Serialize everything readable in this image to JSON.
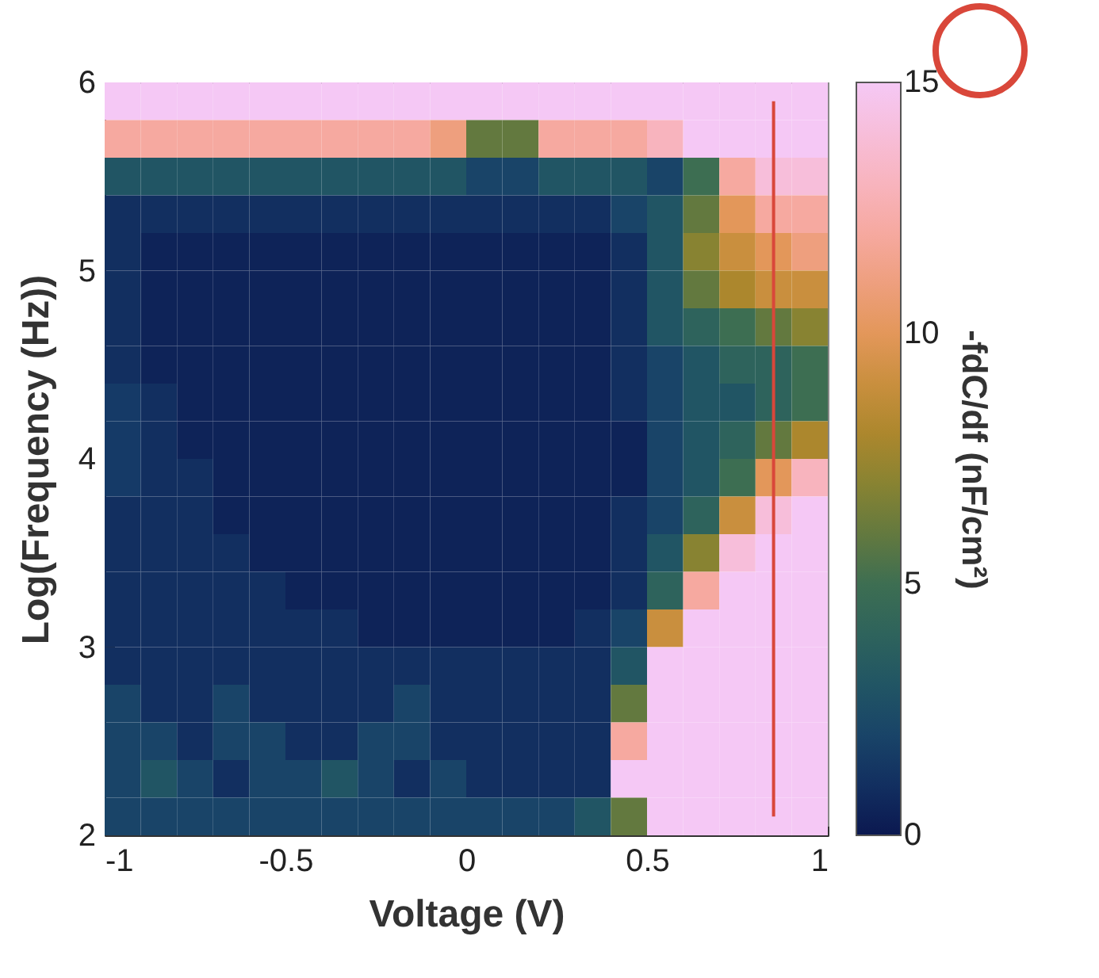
{
  "chart_data": {
    "type": "heatmap",
    "xlabel": "Voltage (V)",
    "ylabel": "Log(Frequency (Hz))",
    "clabel": "-fdC/df (nF/cm²)",
    "xlim": [
      -1,
      1
    ],
    "xticks": [
      -1,
      -0.5,
      0,
      0.5,
      1
    ],
    "ylim": [
      2,
      6
    ],
    "yticks": [
      2,
      3,
      4,
      5,
      6
    ],
    "clim": [
      0,
      15
    ],
    "cticks": [
      0,
      5,
      10,
      15
    ],
    "cells": [
      [
        15,
        15,
        15,
        15,
        15,
        15,
        15,
        15,
        15,
        15,
        15,
        15,
        15,
        15,
        15,
        15,
        15,
        15,
        15,
        15
      ],
      [
        12,
        12,
        12,
        12,
        12,
        12,
        12,
        12,
        12,
        11,
        6,
        6,
        12,
        12,
        12,
        13,
        15,
        15,
        15,
        15
      ],
      [
        3,
        3,
        3,
        3,
        3,
        3,
        3,
        3,
        3,
        3,
        2,
        2,
        3,
        3,
        3,
        2,
        5,
        12,
        14,
        14
      ],
      [
        1,
        1,
        1,
        1,
        1,
        1,
        1,
        1,
        1,
        1,
        1,
        1,
        1,
        1,
        2,
        3,
        6,
        10,
        12,
        12
      ],
      [
        1,
        0.5,
        0.5,
        0.5,
        0.5,
        0.5,
        0.5,
        0.5,
        0.5,
        0.5,
        0.5,
        0.5,
        0.5,
        0.5,
        1,
        3,
        7,
        9,
        10,
        11
      ],
      [
        1,
        0.5,
        0.5,
        0.5,
        0.5,
        0.5,
        0.5,
        0.5,
        0.5,
        0.5,
        0.5,
        0.5,
        0.5,
        0.5,
        1,
        3,
        6,
        8,
        9,
        9
      ],
      [
        1,
        0.5,
        0.5,
        0.5,
        0.5,
        0.5,
        0.5,
        0.5,
        0.5,
        0.5,
        0.5,
        0.5,
        0.5,
        0.5,
        1,
        3,
        4,
        5,
        6,
        7
      ],
      [
        1,
        0.5,
        0.5,
        0.5,
        0.5,
        0.5,
        0.5,
        0.5,
        0.5,
        0.5,
        0.5,
        0.5,
        0.5,
        0.5,
        1,
        2,
        3,
        4,
        4,
        5
      ],
      [
        1.5,
        1,
        0.5,
        0.5,
        0.5,
        0.5,
        0.5,
        0.5,
        0.5,
        0.5,
        0.5,
        0.5,
        0.5,
        0.5,
        1,
        2,
        3,
        3,
        4,
        5
      ],
      [
        1.5,
        1,
        0.5,
        0.5,
        0.5,
        0.5,
        0.5,
        0.5,
        0.5,
        0.5,
        0.5,
        0.5,
        0.5,
        0.5,
        0.5,
        2,
        3,
        4,
        6,
        8
      ],
      [
        1.5,
        1,
        1,
        0.5,
        0.5,
        0.5,
        0.5,
        0.5,
        0.5,
        0.5,
        0.5,
        0.5,
        0.5,
        0.5,
        0.5,
        2,
        3,
        5,
        10,
        13
      ],
      [
        1,
        1,
        1,
        0.5,
        0.5,
        0.5,
        0.5,
        0.5,
        0.5,
        0.5,
        0.5,
        0.5,
        0.5,
        0.5,
        1,
        2,
        4,
        9,
        14,
        15
      ],
      [
        1,
        1,
        1,
        1,
        0.5,
        0.5,
        0.5,
        0.5,
        0.5,
        0.5,
        0.5,
        0.5,
        0.5,
        0.5,
        1,
        3,
        7,
        14,
        15,
        15
      ],
      [
        1,
        1,
        1,
        1,
        1,
        0.5,
        0.5,
        0.5,
        0.5,
        0.5,
        0.5,
        0.5,
        0.5,
        0.5,
        1,
        4,
        12,
        15,
        15,
        15
      ],
      [
        1,
        1,
        1,
        1,
        1,
        1,
        1,
        0.5,
        0.5,
        0.5,
        0.5,
        0.5,
        0.5,
        1,
        2,
        9,
        15,
        15,
        15,
        15
      ],
      [
        1,
        1,
        1,
        1,
        1,
        1,
        1,
        1,
        1,
        1,
        1,
        1,
        1,
        1,
        3,
        15,
        15,
        15,
        15,
        15
      ],
      [
        2,
        1,
        1,
        2,
        1,
        1,
        1,
        1,
        2,
        1,
        1,
        1,
        1,
        1,
        6,
        15,
        15,
        15,
        15,
        15
      ],
      [
        2,
        2,
        1,
        2,
        2,
        1,
        1,
        2,
        2,
        1,
        1,
        1,
        1,
        1,
        12,
        15,
        15,
        15,
        15,
        15
      ],
      [
        2,
        3,
        2,
        1,
        2,
        2,
        3,
        2,
        1,
        2,
        1,
        1,
        1,
        1,
        15,
        15,
        15,
        15,
        15,
        15
      ],
      [
        2,
        2,
        2,
        2,
        2,
        2,
        2,
        2,
        2,
        2,
        2,
        2,
        2,
        3,
        6,
        15,
        15,
        15,
        15,
        15
      ]
    ],
    "ref_lines": [
      {
        "axis": "x",
        "value": 0.85,
        "color": "#d9473a"
      }
    ]
  }
}
